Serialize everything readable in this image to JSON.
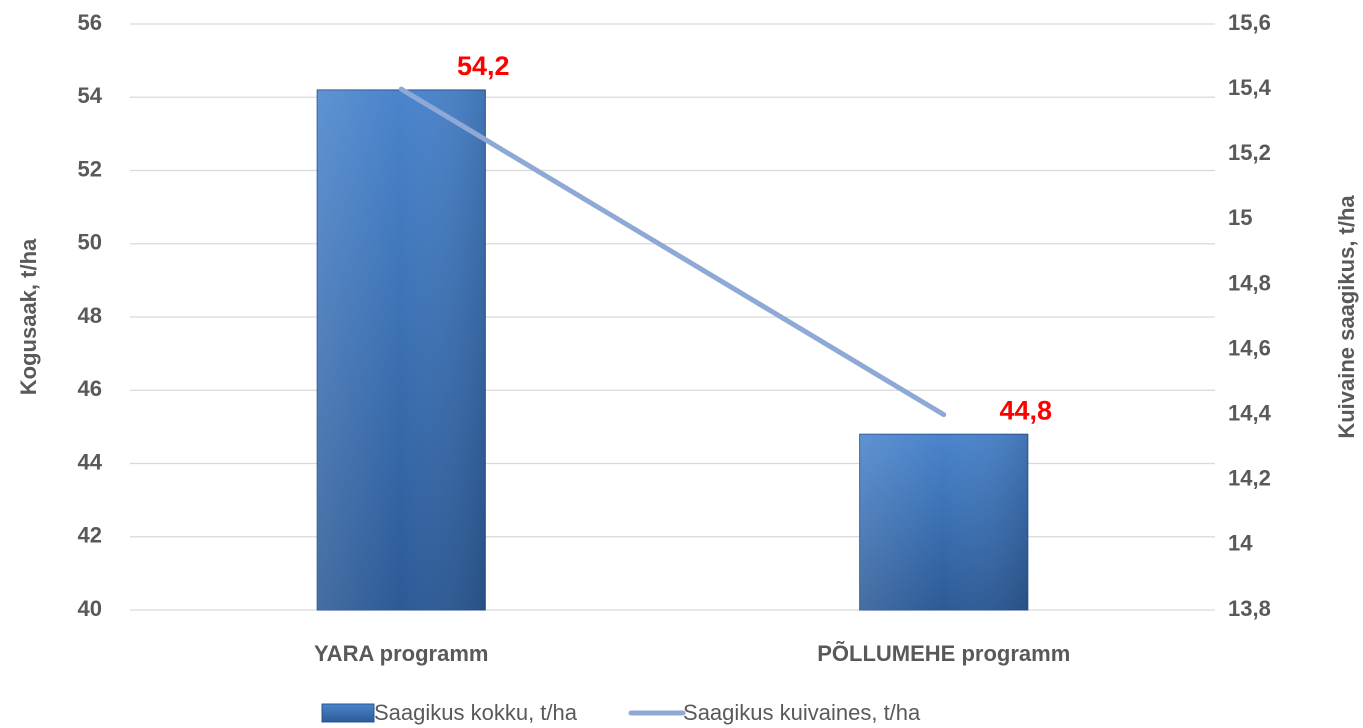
{
  "chart_data": {
    "type": "bar",
    "categories": [
      "YARA programm",
      "PÕLLUMEHE programm"
    ],
    "series": [
      {
        "name": "Saagikus kokku, t/ha",
        "type": "bar",
        "color": "#3a70b6",
        "values": [
          54.2,
          44.8
        ],
        "value_labels": [
          "54,2",
          "44,8"
        ]
      },
      {
        "name": "Saagikus kuivaines, t/ha",
        "type": "line",
        "axis": "y2",
        "color": "#8fa9d6",
        "values": [
          15.4,
          14.4
        ]
      }
    ],
    "ylabel": "Kogusaak, t/ha",
    "y2label": "Kuivaine saagikus, t/ha",
    "ylim": [
      40,
      56
    ],
    "yticks": [
      40,
      42,
      44,
      46,
      48,
      50,
      52,
      54,
      56
    ],
    "y2lim": [
      13.8,
      15.6
    ],
    "y2ticks": [
      {
        "value": 13.8,
        "label": "13,8"
      },
      14,
      {
        "value": 14.2,
        "label": "14,2"
      },
      {
        "value": 14.4,
        "label": "14,4"
      },
      {
        "value": 14.6,
        "label": "14,6"
      },
      {
        "value": 14.8,
        "label": "14,8"
      },
      15,
      {
        "value": 15.2,
        "label": "15,2"
      },
      {
        "value": 15.4,
        "label": "15,4"
      },
      {
        "value": 15.6,
        "label": "15,6"
      }
    ],
    "grid": true,
    "legend": "bottom"
  }
}
